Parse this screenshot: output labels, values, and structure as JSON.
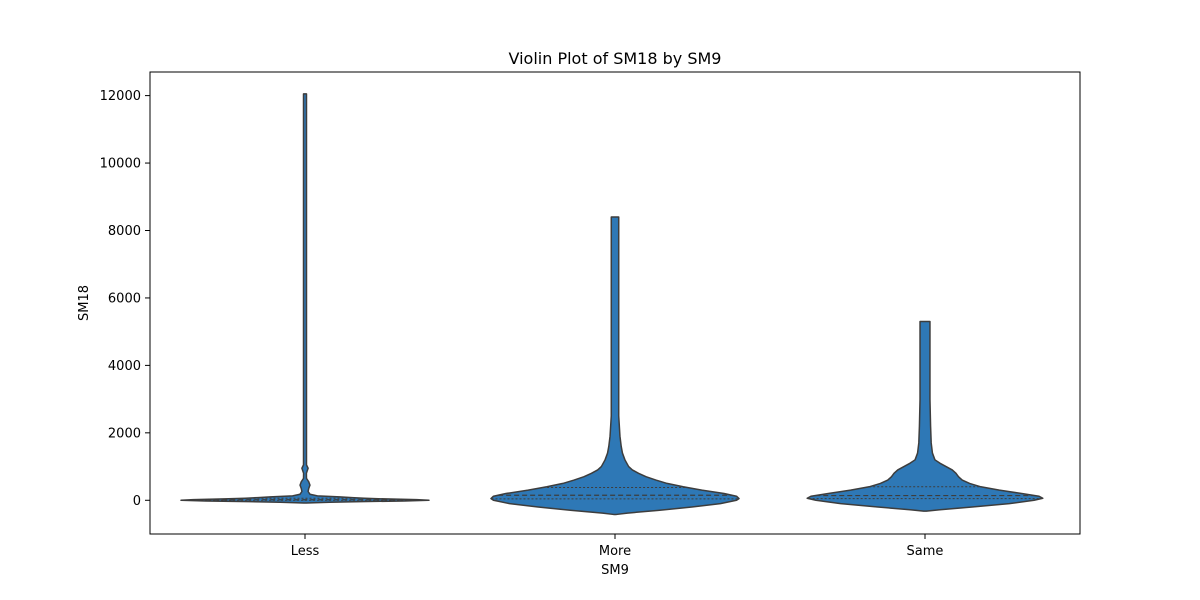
{
  "chart_data": {
    "type": "violin",
    "title": "Violin Plot of SM18 by SM9",
    "xlabel": "SM9",
    "ylabel": "SM18",
    "categories": [
      "Less",
      "More",
      "Same"
    ],
    "ylim": [
      -1000,
      12700
    ],
    "yticks": [
      0,
      2000,
      4000,
      6000,
      8000,
      10000,
      12000
    ],
    "grid": false,
    "color": "#2e78b6",
    "edge_color": "#3d3d3d",
    "inner": "quartile",
    "violins": [
      {
        "category": "Less",
        "min": -80,
        "max": 12050,
        "quartiles": [
          0,
          15,
          60
        ],
        "profile": [
          [
            -80,
            0.0
          ],
          [
            -60,
            0.2
          ],
          [
            -40,
            0.45
          ],
          [
            -20,
            0.8
          ],
          [
            0,
            1.0
          ],
          [
            20,
            0.9
          ],
          [
            40,
            0.65
          ],
          [
            60,
            0.48
          ],
          [
            80,
            0.38
          ],
          [
            100,
            0.28
          ],
          [
            130,
            0.1
          ],
          [
            180,
            0.04
          ],
          [
            260,
            0.025
          ],
          [
            350,
            0.03
          ],
          [
            450,
            0.04
          ],
          [
            550,
            0.03
          ],
          [
            650,
            0.012
          ],
          [
            800,
            0.01
          ],
          [
            950,
            0.025
          ],
          [
            1050,
            0.012
          ],
          [
            1300,
            0.012
          ],
          [
            3000,
            0.012
          ],
          [
            6000,
            0.012
          ],
          [
            9000,
            0.012
          ],
          [
            12050,
            0.012
          ]
        ]
      },
      {
        "category": "More",
        "min": -420,
        "max": 8400,
        "quartiles": [
          40,
          150,
          380
        ],
        "profile": [
          [
            -420,
            0.0
          ],
          [
            -380,
            0.1
          ],
          [
            -300,
            0.35
          ],
          [
            -200,
            0.62
          ],
          [
            -100,
            0.85
          ],
          [
            0,
            0.98
          ],
          [
            50,
            1.0
          ],
          [
            120,
            0.98
          ],
          [
            200,
            0.88
          ],
          [
            300,
            0.7
          ],
          [
            400,
            0.55
          ],
          [
            500,
            0.42
          ],
          [
            600,
            0.33
          ],
          [
            700,
            0.25
          ],
          [
            800,
            0.19
          ],
          [
            900,
            0.14
          ],
          [
            1000,
            0.11
          ],
          [
            1200,
            0.08
          ],
          [
            1400,
            0.06
          ],
          [
            1600,
            0.05
          ],
          [
            1900,
            0.04
          ],
          [
            2500,
            0.03
          ],
          [
            3500,
            0.03
          ],
          [
            5000,
            0.03
          ],
          [
            7000,
            0.03
          ],
          [
            8400,
            0.03
          ]
        ]
      },
      {
        "category": "Same",
        "min": -320,
        "max": 5300,
        "quartiles": [
          50,
          140,
          400
        ],
        "profile": [
          [
            -320,
            0.0
          ],
          [
            -280,
            0.12
          ],
          [
            -200,
            0.38
          ],
          [
            -100,
            0.68
          ],
          [
            0,
            0.88
          ],
          [
            60,
            0.95
          ],
          [
            120,
            0.92
          ],
          [
            200,
            0.78
          ],
          [
            300,
            0.6
          ],
          [
            400,
            0.45
          ],
          [
            500,
            0.36
          ],
          [
            600,
            0.3
          ],
          [
            700,
            0.27
          ],
          [
            800,
            0.25
          ],
          [
            900,
            0.22
          ],
          [
            1000,
            0.17
          ],
          [
            1100,
            0.12
          ],
          [
            1200,
            0.08
          ],
          [
            1400,
            0.06
          ],
          [
            1700,
            0.05
          ],
          [
            2200,
            0.045
          ],
          [
            3000,
            0.04
          ],
          [
            4200,
            0.04
          ],
          [
            5300,
            0.04
          ]
        ]
      }
    ]
  }
}
